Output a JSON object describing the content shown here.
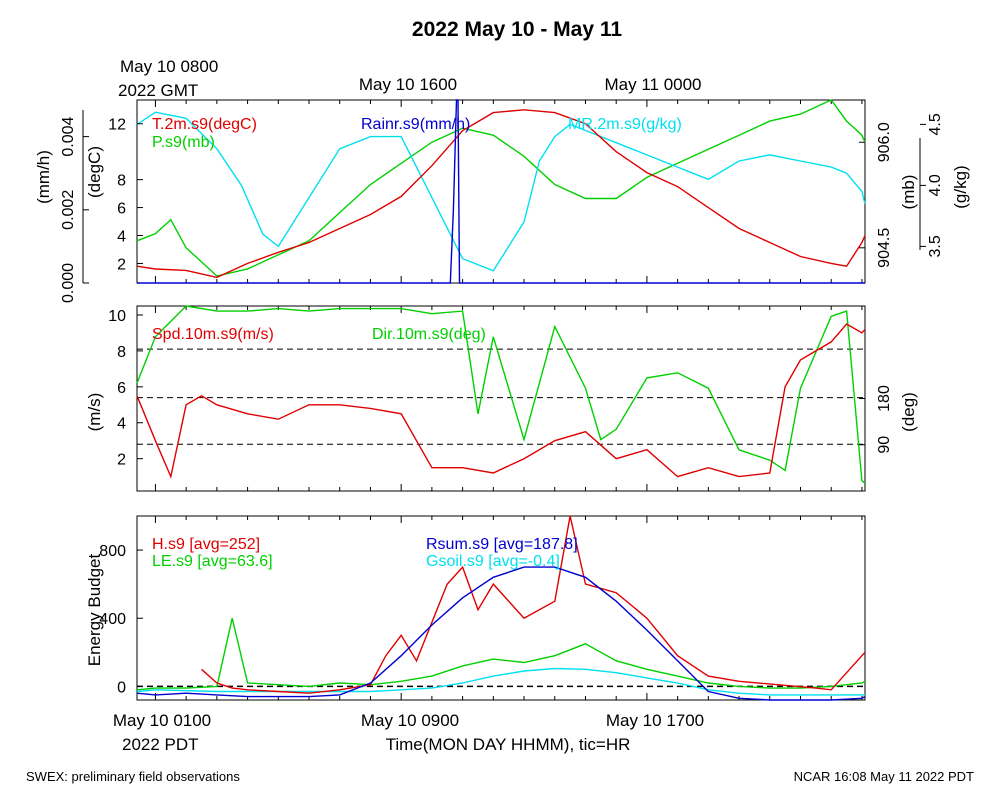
{
  "title": "2022 May 10 - May 11",
  "top_labels": {
    "start_line1": "May 10 0800",
    "start_line2": "2022 GMT",
    "mid": "May 10 1600",
    "end": "May 11 0000"
  },
  "bottom_labels": {
    "start_line1": "May 10 0100",
    "start_line2": "2022 PDT",
    "mid": "May 10 0900",
    "end": "May 10 1700",
    "xlabel": "Time(MON DAY HHMM), tic=HR"
  },
  "footer": {
    "left": "SWEX: preliminary field observations",
    "right": "NCAR 16:08 May 11 2022 PDT"
  },
  "colors": {
    "red": "#e00000",
    "green": "#00d000",
    "blue": "#0000d0",
    "cyan": "#00e0f0"
  },
  "chart_data": [
    {
      "type": "line",
      "panel": "met",
      "x_unit": "hour (PDT, May 10)",
      "xlim": [
        -0.6,
        23.1
      ],
      "axes": {
        "rain_ylabel": "(mm/h)",
        "rain_ticks": [
          "0.000",
          "0.002",
          "0.004"
        ],
        "rain_ylim": [
          0,
          0.005
        ],
        "temp_ylabel": "(degC)",
        "temp_ticks": [
          "2",
          "4",
          "6",
          "8",
          "12"
        ],
        "temp_ylim": [
          0.6,
          13.7
        ],
        "p_ylabel": "(mb)",
        "p_ticks": [
          "904.5",
          "906.0"
        ],
        "p_ylim": [
          904.0,
          906.6
        ],
        "mr_ylabel": "(g/kg)",
        "mr_ticks": [
          "3.5",
          "4.0",
          "4.5"
        ],
        "mr_ylim": [
          3.2,
          4.7
        ]
      },
      "series": [
        {
          "name": "T.2m.s9(degC)",
          "color": "red",
          "x": [
            -0.6,
            0,
            1,
            2,
            3,
            4,
            5,
            6,
            7,
            8,
            9,
            10,
            11,
            12,
            13,
            14,
            15,
            16,
            17,
            18,
            19,
            20,
            21,
            22,
            22.5,
            23,
            23.1
          ],
          "y": [
            1.8,
            1.6,
            1.5,
            1.0,
            2.0,
            2.8,
            3.5,
            4.5,
            5.5,
            6.8,
            9.0,
            11.5,
            12.8,
            13.0,
            12.8,
            12.0,
            10.0,
            8.5,
            7.5,
            6.0,
            4.5,
            3.5,
            2.5,
            2.0,
            1.8,
            3.5,
            4.0
          ]
        },
        {
          "name": "P.s9(mb)",
          "color": "green",
          "x": [
            -0.6,
            0,
            0.5,
            1,
            2,
            3,
            4,
            5,
            6,
            7,
            8,
            9,
            10,
            11,
            12,
            13,
            14,
            15,
            16,
            17,
            18,
            19,
            20,
            21,
            22,
            22.5,
            23,
            23.1
          ],
          "y": [
            904.6,
            904.7,
            904.9,
            904.5,
            904.1,
            904.2,
            904.4,
            904.6,
            905.0,
            905.4,
            905.7,
            906.0,
            906.2,
            906.1,
            905.8,
            905.4,
            905.2,
            905.2,
            905.5,
            905.7,
            905.9,
            906.1,
            906.3,
            906.4,
            906.6,
            906.3,
            906.1,
            906.0
          ]
        },
        {
          "name": "MR.2m.s9(g/kg)",
          "color": "cyan",
          "x": [
            -0.6,
            0,
            1,
            2,
            2.8,
            3.5,
            4,
            5,
            6,
            7,
            8,
            9,
            10,
            11,
            12,
            12.5,
            13,
            13.5,
            14,
            15,
            16,
            17,
            18,
            19,
            20,
            21,
            22,
            22.5,
            23,
            23.1
          ],
          "y": [
            4.5,
            4.6,
            4.55,
            4.3,
            4.0,
            3.6,
            3.5,
            3.9,
            4.3,
            4.4,
            4.4,
            3.9,
            3.4,
            3.3,
            3.7,
            4.2,
            4.4,
            4.5,
            4.45,
            4.35,
            4.25,
            4.15,
            4.05,
            4.2,
            4.25,
            4.2,
            4.15,
            4.1,
            3.95,
            3.85
          ]
        },
        {
          "name": "Rainr.s9(mm/h)",
          "color": "blue",
          "x": [
            -0.6,
            9.6,
            9.7,
            9.8,
            9.85,
            9.9,
            10.0,
            23.1
          ],
          "y": [
            0,
            0,
            0.002,
            0.005,
            0.005,
            0,
            0,
            0
          ]
        }
      ]
    },
    {
      "type": "line",
      "panel": "wind",
      "x_unit": "hour (PDT, May 10)",
      "xlim": [
        -0.6,
        23.1
      ],
      "axes": {
        "spd_ylabel": "(m/s)",
        "spd_ticks": [
          "2",
          "4",
          "6",
          "8",
          "10"
        ],
        "spd_ylim": [
          0.2,
          10.5
        ],
        "dir_ylabel": "(deg)",
        "dir_ticks": [
          "90",
          "180"
        ],
        "dir_ylim": [
          0,
          360
        ],
        "dashed_lines_mps": [
          2.8,
          5.4,
          8.1
        ]
      },
      "series": [
        {
          "name": "Spd.10m.s9(m/s)",
          "color": "red",
          "x": [
            -0.6,
            0,
            0.5,
            1,
            1.5,
            2,
            3,
            4,
            5,
            6,
            7,
            8,
            8.5,
            9,
            10,
            11,
            12,
            13,
            14,
            15,
            16,
            17,
            18,
            19,
            20,
            20.5,
            21,
            22,
            22.5,
            23,
            23.1
          ],
          "y": [
            5.5,
            3.0,
            1.0,
            5.0,
            5.5,
            5.0,
            4.5,
            4.2,
            5.0,
            5.0,
            4.8,
            4.5,
            3.0,
            1.5,
            1.5,
            1.2,
            2.0,
            3.0,
            3.5,
            2.0,
            2.5,
            1.0,
            1.5,
            1.0,
            1.2,
            6.0,
            7.5,
            8.5,
            9.5,
            9.0,
            9.2
          ]
        },
        {
          "name": "Dir.10m.s9(deg)",
          "color": "green",
          "x": [
            -0.6,
            0,
            0.5,
            1,
            2,
            3,
            4,
            5,
            6,
            7,
            8,
            9,
            10,
            10.5,
            11,
            12,
            13,
            14,
            14.5,
            15,
            16,
            17,
            18,
            19,
            20,
            20.5,
            21,
            22,
            22.5,
            23,
            23.1
          ],
          "y": [
            210,
            300,
            330,
            360,
            350,
            350,
            355,
            350,
            355,
            355,
            355,
            345,
            350,
            150,
            300,
            100,
            320,
            200,
            100,
            120,
            220,
            230,
            200,
            80,
            60,
            40,
            200,
            340,
            350,
            20,
            15
          ]
        }
      ]
    },
    {
      "type": "line",
      "panel": "energy",
      "x_unit": "hour (PDT, May 10)",
      "xlim": [
        -0.6,
        23.1
      ],
      "axes": {
        "ylabel": "Energy Budget",
        "ticks": [
          "0",
          "400",
          "800"
        ],
        "ylim": [
          -80,
          1000
        ],
        "dashed_line": 0
      },
      "series": [
        {
          "name": "H.s9 [avg=252]",
          "color": "red",
          "x": [
            1.5,
            2,
            2.5,
            3,
            4,
            5,
            6,
            7,
            7.5,
            8,
            8.5,
            9.5,
            10,
            10.5,
            11,
            12,
            13,
            13.5,
            14,
            15,
            16,
            17,
            18,
            19,
            21.5,
            22,
            23,
            23.1
          ],
          "y": [
            100,
            20,
            -10,
            -20,
            -30,
            -40,
            -20,
            10,
            180,
            300,
            150,
            600,
            700,
            450,
            600,
            400,
            500,
            1000,
            600,
            550,
            400,
            180,
            60,
            30,
            -10,
            -20,
            180,
            200
          ]
        },
        {
          "name": "LE.s9 [avg=63.6]",
          "color": "green",
          "x": [
            -0.6,
            0,
            1,
            2,
            2.5,
            3,
            4,
            5,
            6,
            7,
            8,
            9,
            10,
            11,
            12,
            13,
            14,
            15,
            16,
            17,
            18,
            19,
            20,
            21,
            22,
            23,
            23.1
          ],
          "y": [
            -20,
            -10,
            -10,
            0,
            400,
            20,
            10,
            0,
            20,
            10,
            30,
            60,
            120,
            160,
            140,
            180,
            250,
            150,
            100,
            60,
            20,
            0,
            -10,
            -10,
            0,
            20,
            30
          ]
        },
        {
          "name": "Rsum.s9 [avg=187.8]",
          "color": "blue",
          "x": [
            -0.6,
            0,
            1,
            2,
            3,
            4,
            5,
            6,
            7,
            8,
            9,
            10,
            11,
            12,
            13,
            14,
            15,
            16,
            17,
            18,
            19,
            20,
            21,
            22,
            23,
            23.1
          ],
          "y": [
            -40,
            -50,
            -40,
            -50,
            -60,
            -60,
            -60,
            -50,
            20,
            180,
            360,
            520,
            640,
            700,
            700,
            640,
            500,
            330,
            150,
            -30,
            -70,
            -80,
            -80,
            -80,
            -70,
            -60
          ]
        },
        {
          "name": "Gsoil.s9 [avg=-0.4]",
          "color": "cyan",
          "x": [
            -0.6,
            0,
            2,
            4,
            6,
            7,
            8,
            9,
            10,
            11,
            12,
            13,
            14,
            15,
            16,
            17,
            18,
            19,
            20,
            21,
            22,
            23,
            23.1
          ],
          "y": [
            -30,
            -20,
            -30,
            -30,
            -30,
            -30,
            -20,
            -10,
            20,
            60,
            90,
            105,
            100,
            80,
            50,
            20,
            -20,
            -40,
            -50,
            -50,
            -50,
            -50,
            -50
          ]
        }
      ]
    }
  ]
}
